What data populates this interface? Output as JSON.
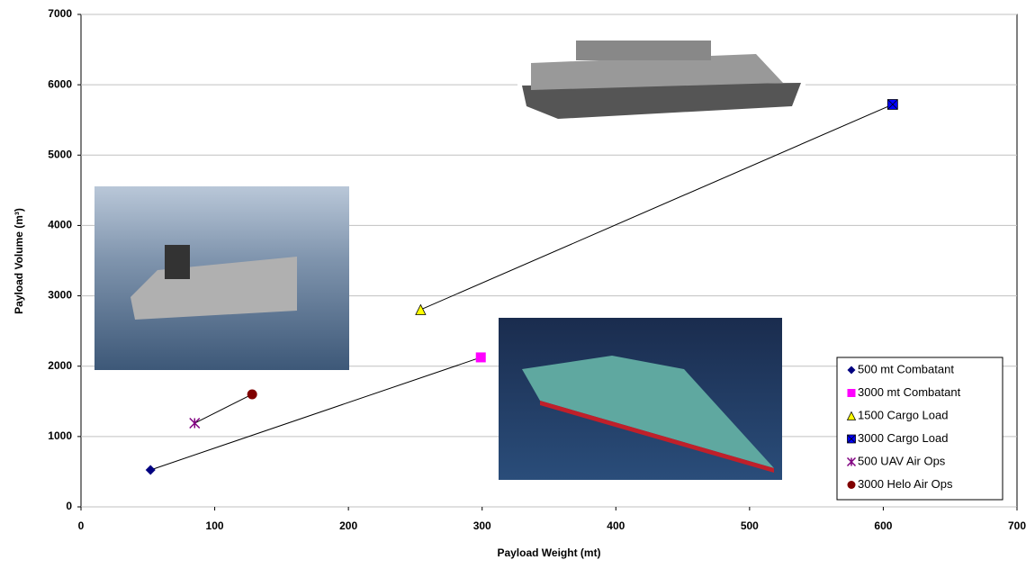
{
  "chart_data": {
    "type": "scatter",
    "x_label": "Payload Weight (mt)",
    "y_label": "Payload Volume (m³)",
    "xlim": [
      0,
      700
    ],
    "ylim": [
      0,
      7000
    ],
    "xticks": [
      0,
      100,
      200,
      300,
      400,
      500,
      600,
      700
    ],
    "yticks": [
      0,
      1000,
      2000,
      3000,
      4000,
      5000,
      6000,
      7000
    ],
    "grid": true,
    "legend": "lower right",
    "series": [
      {
        "name": "500 mt Combatant",
        "color": "#000080",
        "marker": "diamond",
        "x": [
          52
        ],
        "values": [
          525
        ]
      },
      {
        "name": "3000 mt Combatant",
        "color": "#ff00ff",
        "marker": "square",
        "x": [
          299
        ],
        "values": [
          2125
        ]
      },
      {
        "name": "1500 Cargo Load",
        "color": "#ffff00",
        "marker": "triangle",
        "x": [
          254
        ],
        "values": [
          2803
        ]
      },
      {
        "name": "3000 Cargo Load",
        "color": "#0000ff",
        "marker": "square-x",
        "x": [
          607
        ],
        "values": [
          5720
        ]
      },
      {
        "name": "500 UAV Air Ops",
        "color": "#800080",
        "marker": "star",
        "x": [
          85
        ],
        "values": [
          1190
        ]
      },
      {
        "name": "3000 Helo Air Ops",
        "color": "#800000",
        "marker": "circle",
        "x": [
          128
        ],
        "values": [
          1600
        ]
      }
    ]
  }
}
